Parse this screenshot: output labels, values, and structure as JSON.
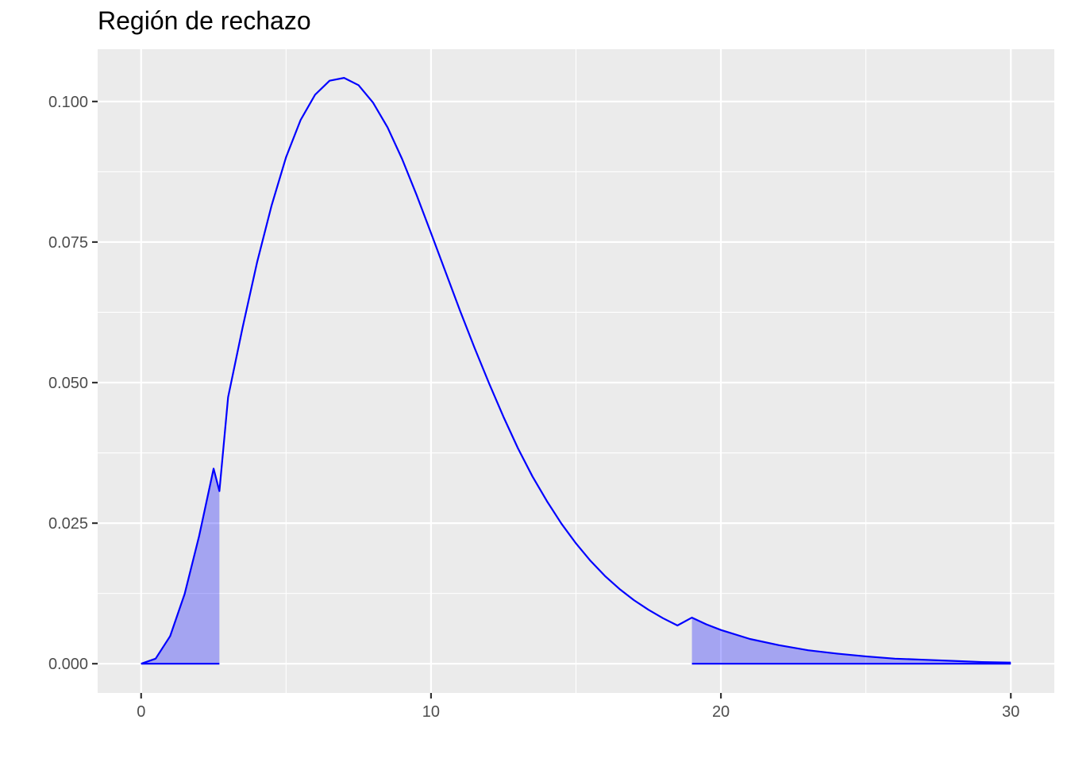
{
  "chart_data": {
    "type": "area",
    "title": "Región de rechazo",
    "xlabel": "",
    "ylabel": "",
    "xlim": [
      -1.5,
      31.5
    ],
    "ylim": [
      -0.0052,
      0.1093
    ],
    "x_ticks": [
      0,
      10,
      20,
      30
    ],
    "x_tick_labels": [
      "0",
      "10",
      "20",
      "30"
    ],
    "y_ticks": [
      0.0,
      0.025,
      0.05,
      0.075,
      0.1
    ],
    "y_tick_labels": [
      "0.000",
      "0.025",
      "0.050",
      "0.075",
      "0.100"
    ],
    "grid": true,
    "legend": "none",
    "series": [
      {
        "kind": "density-curve",
        "color": "#0000ff",
        "x": [
          0,
          0.5,
          1,
          1.5,
          2,
          2.5,
          2.7,
          3,
          3.5,
          4,
          4.5,
          5,
          5.5,
          6,
          6.5,
          7,
          7.5,
          8,
          8.5,
          9,
          9.5,
          10,
          10.5,
          11,
          11.5,
          12,
          12.5,
          13,
          13.5,
          14,
          14.5,
          15,
          15.5,
          16,
          16.5,
          17,
          17.5,
          18,
          18.5,
          19,
          19.5,
          20,
          21,
          22,
          23,
          24,
          25,
          26,
          27,
          28,
          29,
          30
        ],
        "y": [
          0.0,
          0.0009,
          0.0049,
          0.0124,
          0.0227,
          0.0347,
          0.0307,
          0.0474,
          0.0598,
          0.0714,
          0.0815,
          0.0901,
          0.0967,
          0.1012,
          0.1037,
          0.1042,
          0.1029,
          0.0998,
          0.0954,
          0.0898,
          0.0834,
          0.0766,
          0.0697,
          0.0628,
          0.0562,
          0.0499,
          0.0439,
          0.0383,
          0.0333,
          0.0289,
          0.0249,
          0.0214,
          0.0183,
          0.0156,
          0.0133,
          0.0113,
          0.0096,
          0.0081,
          0.0068,
          0.0082,
          0.007,
          0.006,
          0.0044,
          0.0033,
          0.0024,
          0.0018,
          0.0013,
          0.0009,
          0.0007,
          0.0005,
          0.0003,
          0.0002
        ]
      }
    ],
    "rejection_regions": [
      {
        "from": 0,
        "to": 2.7,
        "fill": "#0000ff",
        "opacity": 0.3
      },
      {
        "from": 19,
        "to": 30,
        "fill": "#0000ff",
        "opacity": 0.3
      }
    ],
    "panel_background": "#ebebeb",
    "grid_color": "#ffffff"
  }
}
